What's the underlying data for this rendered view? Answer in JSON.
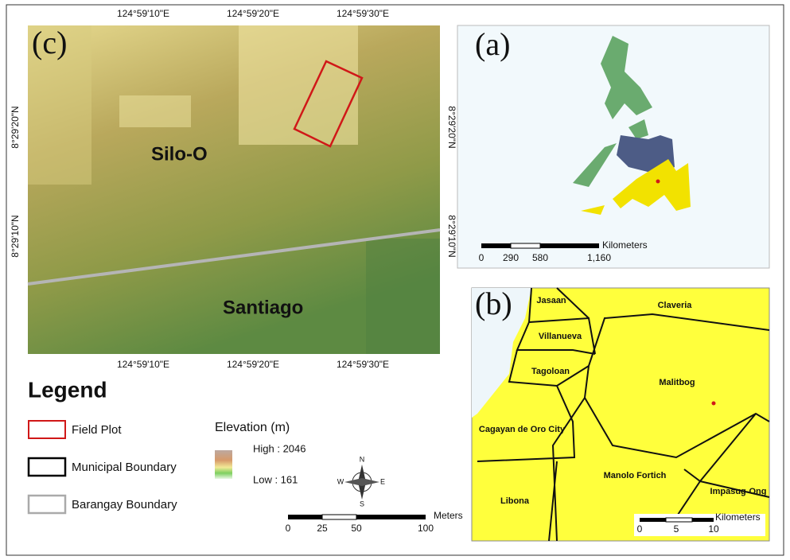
{
  "panel_c": {
    "label": "(c)",
    "top_ticks": [
      "124°59'10\"E",
      "124°59'20\"E",
      "124°59'30\"E"
    ],
    "bottom_ticks": [
      "124°59'10\"E",
      "124°59'20\"E",
      "124°59'30\"E"
    ],
    "left_ticks": [
      "8°29'20\"N",
      "8°29'10\"N"
    ],
    "right_ticks": [
      "8°29'20\"N",
      "8°29'10\"N"
    ],
    "places": [
      "Silo-O",
      "Santiago"
    ]
  },
  "panel_a": {
    "label": "(a)",
    "scale_unit": "Kilometers",
    "scale_ticks": [
      "0",
      "290",
      "580",
      "1,160"
    ]
  },
  "panel_b": {
    "label": "(b)",
    "places": [
      "Jasaan",
      "Claveria",
      "Villanueva",
      "Tagoloan",
      "Malitbog",
      "Cagayan de Oro City",
      "Manolo Fortich",
      "Impasug-Ong",
      "Libona"
    ],
    "scale_unit": "Kilometers",
    "scale_ticks": [
      "0",
      "5",
      "10"
    ]
  },
  "legend": {
    "title": "Legend",
    "items": [
      "Field Plot",
      "Municipal Boundary",
      "Barangay Boundary"
    ],
    "elevation_title": "Elevation (m)",
    "high": "High : 2046",
    "low": "Low : 161"
  },
  "compass": {
    "north": "N",
    "south": "S",
    "east": "E",
    "west": "W"
  },
  "scale": {
    "unit": "Meters",
    "ticks": [
      "0",
      "25",
      "50",
      "100"
    ]
  }
}
